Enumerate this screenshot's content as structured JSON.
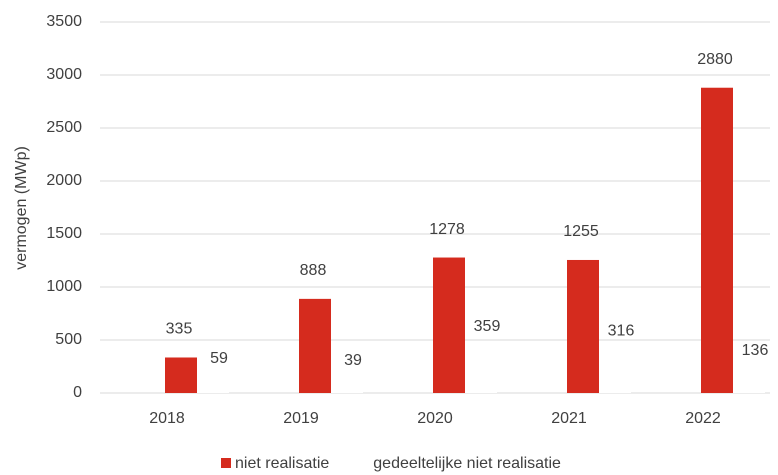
{
  "chart_data": {
    "type": "bar",
    "ylabel": "vermogen (MWp)",
    "categories": [
      "2018",
      "2019",
      "2020",
      "2021",
      "2022"
    ],
    "series": [
      {
        "name": "niet realisatie",
        "color": "#d52b1e",
        "values": [
          335,
          888,
          1278,
          1255,
          2880
        ]
      },
      {
        "name": "gedeeltelijke niet realisatie",
        "color": "#ffffff",
        "values": [
          59,
          39,
          359,
          316,
          136
        ]
      }
    ],
    "ylim": [
      0,
      3500
    ],
    "yticks": [
      0,
      500,
      1000,
      1500,
      2000,
      2500,
      3000,
      3500
    ],
    "grid": true,
    "legend": "bottom"
  }
}
